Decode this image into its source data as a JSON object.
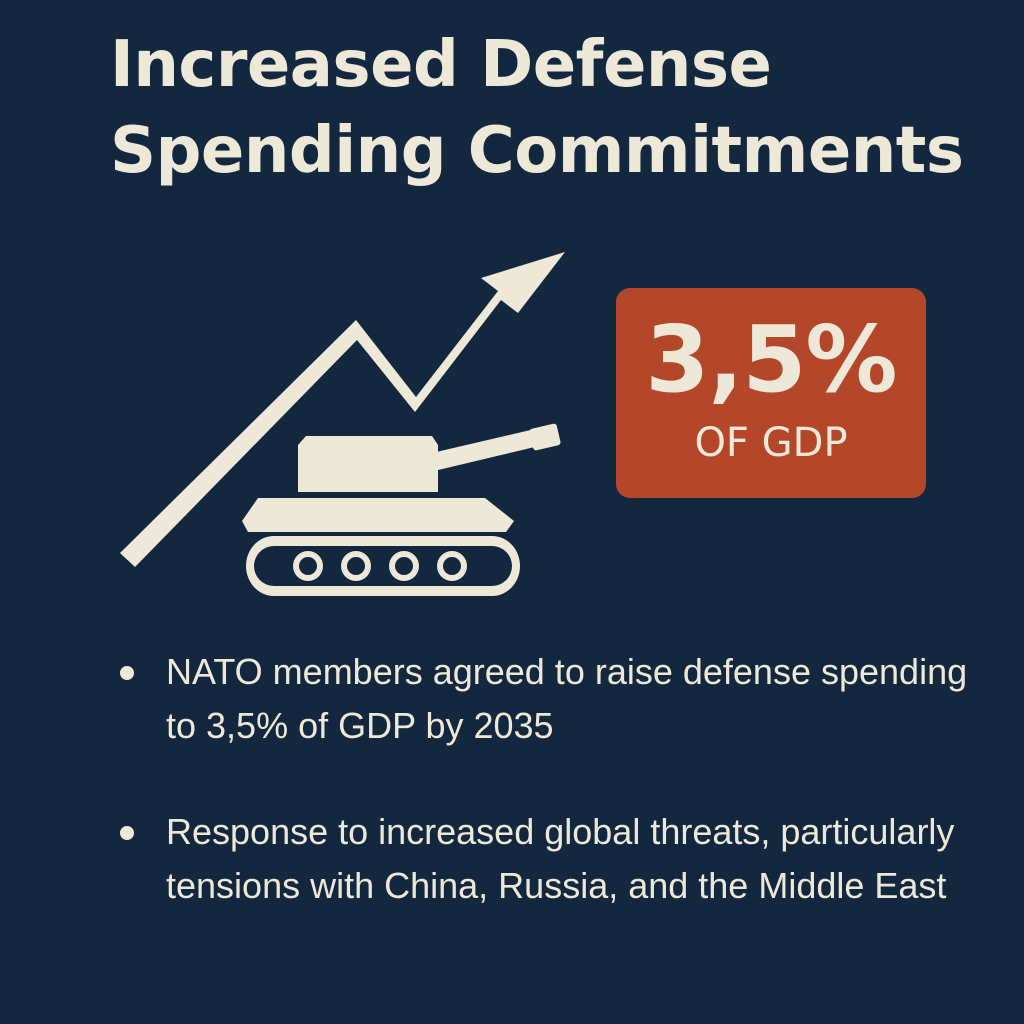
{
  "title": {
    "line1": "Increased Defense",
    "line2": "Spending Commitments"
  },
  "stat": {
    "value": "3,5%",
    "unit": "OF GDP"
  },
  "illustration": {
    "icons": [
      "trend-arrow-icon",
      "tank-icon"
    ],
    "color": "#eee8d8"
  },
  "bullets": [
    {
      "text": "NATO members agreed to raise defense spending to 3,5% of GDP by 2035"
    },
    {
      "text": "Response to increased global threats, particularly tensions with China, Russia, and the Middle East"
    }
  ],
  "colors": {
    "background": "#13283f",
    "accent": "#b4472a",
    "text": "#eee8d8"
  }
}
